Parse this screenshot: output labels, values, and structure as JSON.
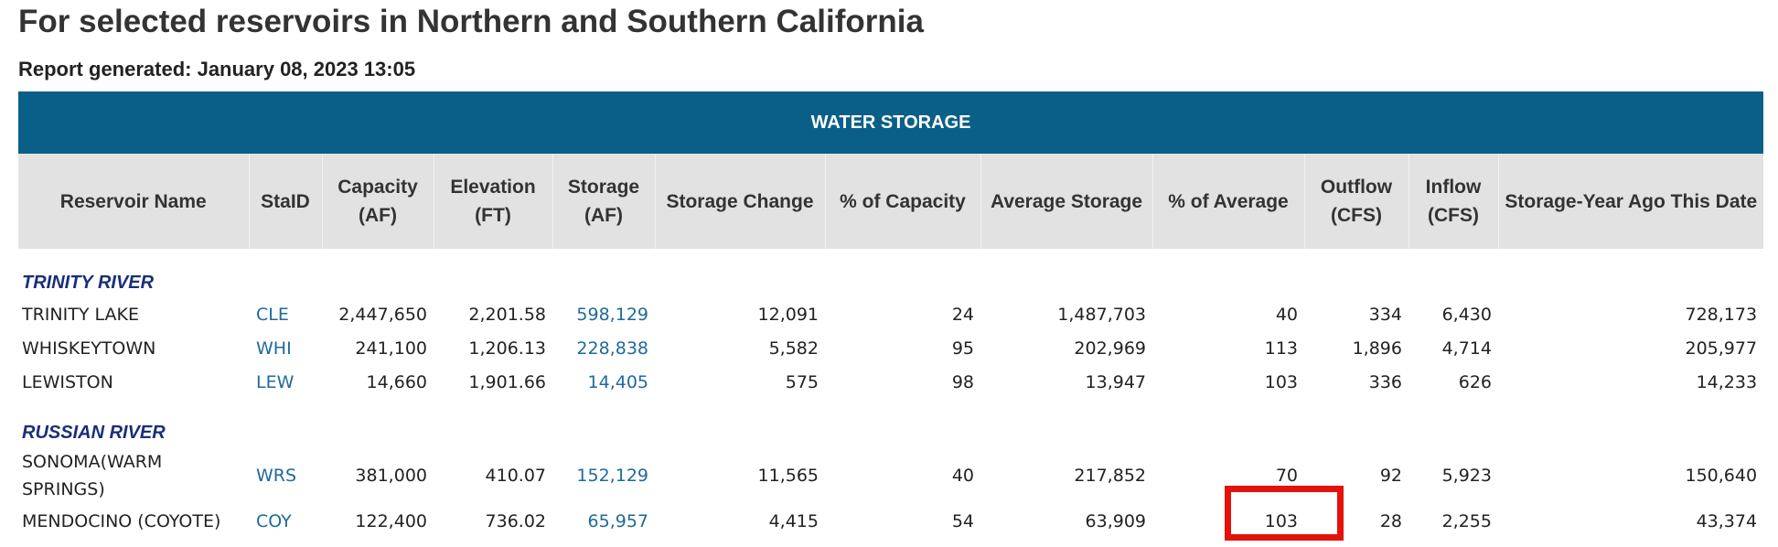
{
  "title": "For selected reservoirs in Northern and Southern California",
  "report_generated": "Report generated: January 08, 2023 13:05",
  "table": {
    "banner": "WATER STORAGE",
    "headers": [
      "Reservoir Name",
      "StaID",
      "Capacity (AF)",
      "Elevation (FT)",
      "Storage (AF)",
      "Storage Change",
      "% of Capacity",
      "Average Storage",
      "% of Average",
      "Outflow (CFS)",
      "Inflow (CFS)",
      "Storage-Year Ago This Date"
    ],
    "groups": [
      {
        "name": "TRINITY RIVER",
        "rows": [
          {
            "name": "TRINITY LAKE",
            "staid": "CLE",
            "capacity": "2,447,650",
            "elevation": "2,201.58",
            "storage": "598,129",
            "change": "12,091",
            "pct_capacity": "24",
            "avg_storage": "1,487,703",
            "pct_average": "40",
            "outflow": "334",
            "inflow": "6,430",
            "year_ago": "728,173"
          },
          {
            "name": "WHISKEYTOWN",
            "staid": "WHI",
            "capacity": "241,100",
            "elevation": "1,206.13",
            "storage": "228,838",
            "change": "5,582",
            "pct_capacity": "95",
            "avg_storage": "202,969",
            "pct_average": "113",
            "outflow": "1,896",
            "inflow": "4,714",
            "year_ago": "205,977"
          },
          {
            "name": "LEWISTON",
            "staid": "LEW",
            "capacity": "14,660",
            "elevation": "1,901.66",
            "storage": "14,405",
            "change": "575",
            "pct_capacity": "98",
            "avg_storage": "13,947",
            "pct_average": "103",
            "outflow": "336",
            "inflow": "626",
            "year_ago": "14,233"
          }
        ]
      },
      {
        "name": "RUSSIAN RIVER",
        "rows": [
          {
            "name": "SONOMA(WARM SPRINGS)",
            "staid": "WRS",
            "capacity": "381,000",
            "elevation": "410.07",
            "storage": "152,129",
            "change": "11,565",
            "pct_capacity": "40",
            "avg_storage": "217,852",
            "pct_average": "70",
            "outflow": "92",
            "inflow": "5,923",
            "year_ago": "150,640"
          },
          {
            "name": "MENDOCINO (COYOTE)",
            "staid": "COY",
            "capacity": "122,400",
            "elevation": "736.02",
            "storage": "65,957",
            "change": "4,415",
            "pct_capacity": "54",
            "avg_storage": "63,909",
            "pct_average": "103",
            "outflow": "28",
            "inflow": "2,255",
            "year_ago": "43,374"
          }
        ]
      }
    ]
  },
  "colors": {
    "banner": "#0a5f88",
    "header_bg": "#e2e2e2",
    "group_label": "#1a2e7a",
    "link": "#1f6a9a",
    "highlight": "#e3120b"
  }
}
